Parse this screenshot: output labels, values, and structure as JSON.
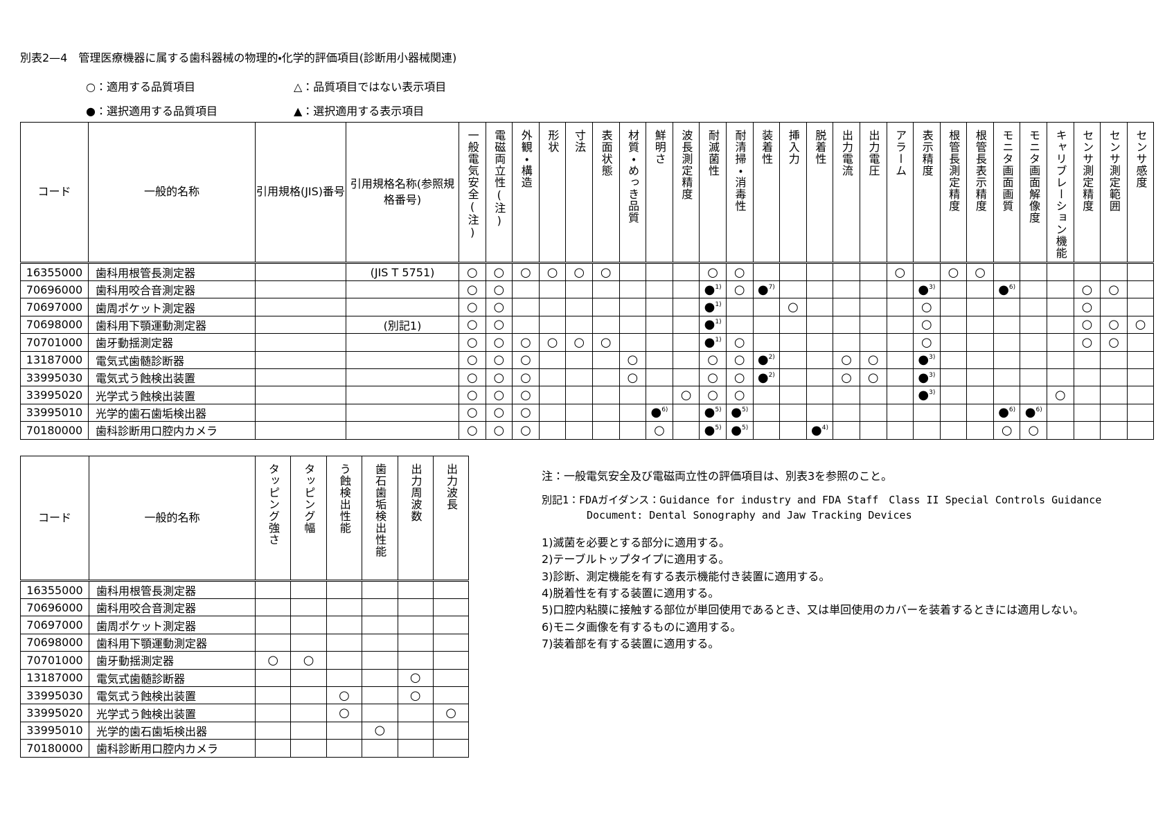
{
  "header": {
    "title": "別表2—4　管理医療機器に属する歯科器械の物理的・化学的評価項目(診断用小器械関連)",
    "legend": [
      "○：適用する品質項目",
      "△：品質項目ではない表示項目",
      "●：選択適用する品質項目",
      "▲：選択適用する表示項目"
    ]
  },
  "table1": {
    "columns": [
      "コード",
      "一般的名称",
      "引用規格(JIS)番号",
      "引用規格名称(参照規格番号)"
    ],
    "items": [
      "一般電気安全(注)",
      "電磁両立性(注)",
      "外観・構造",
      "形状",
      "寸法",
      "表面状態",
      "材質・めっき品質",
      "鮮明さ",
      "波長測定精度",
      "耐滅菌性",
      "耐清掃・消毒性",
      "装着性",
      "挿入力",
      "脱着性",
      "出力電流",
      "出力電圧",
      "アラーム",
      "表示精度",
      "根管長測定精度",
      "根管長表示精度",
      "モニタ画面画質",
      "モニタ画面解像度",
      "キャリブレーション機能",
      "センサ測定精度",
      "センサ測定範囲",
      "センサ感度"
    ],
    "rows": [
      {
        "code": "16355000",
        "name": "歯科用根管長測定器",
        "jis": null,
        "ref": "(JIS T 5751)",
        "cells": [
          "○",
          "○",
          "○",
          "○",
          "○",
          "○",
          null,
          null,
          null,
          "○",
          "○",
          null,
          null,
          null,
          null,
          null,
          "○",
          null,
          "○",
          "○",
          null,
          null,
          null,
          null,
          null,
          null
        ]
      },
      {
        "code": "70696000",
        "name": "歯科用咬合音測定器",
        "jis": null,
        "ref": null,
        "cells": [
          "○",
          "○",
          null,
          null,
          null,
          null,
          null,
          null,
          null,
          {
            "mark": "●",
            "sup": "1)"
          },
          "○",
          {
            "mark": "●",
            "sup": "7)"
          },
          null,
          null,
          null,
          null,
          null,
          {
            "mark": "●",
            "sup": "3)"
          },
          null,
          null,
          {
            "mark": "●",
            "sup": "6)"
          },
          null,
          null,
          "○",
          "○",
          null
        ]
      },
      {
        "code": "70697000",
        "name": "歯周ポケット測定器",
        "jis": null,
        "ref": null,
        "cells": [
          "○",
          "○",
          null,
          null,
          null,
          null,
          null,
          null,
          null,
          {
            "mark": "●",
            "sup": "1)"
          },
          null,
          null,
          "○",
          null,
          null,
          null,
          null,
          "○",
          null,
          null,
          null,
          null,
          null,
          "○",
          null,
          null
        ]
      },
      {
        "code": "70698000",
        "name": "歯科用下顎運動測定器",
        "jis": null,
        "ref": "(別記1)",
        "cells": [
          "○",
          "○",
          null,
          null,
          null,
          null,
          null,
          null,
          null,
          {
            "mark": "●",
            "sup": "1)"
          },
          null,
          null,
          null,
          null,
          null,
          null,
          null,
          "○",
          null,
          null,
          null,
          null,
          null,
          "○",
          "○",
          "○"
        ]
      },
      {
        "code": "70701000",
        "name": "歯牙動揺測定器",
        "jis": null,
        "ref": null,
        "cells": [
          "○",
          "○",
          "○",
          "○",
          "○",
          "○",
          null,
          null,
          null,
          {
            "mark": "●",
            "sup": "1)"
          },
          "○",
          null,
          null,
          null,
          null,
          null,
          null,
          "○",
          null,
          null,
          null,
          null,
          null,
          "○",
          "○",
          null
        ]
      },
      {
        "code": "13187000",
        "name": "電気式歯髄診断器",
        "jis": null,
        "ref": null,
        "cells": [
          "○",
          "○",
          "○",
          null,
          null,
          null,
          "○",
          null,
          null,
          "○",
          "○",
          {
            "mark": "●",
            "sup": "2)"
          },
          null,
          null,
          "○",
          "○",
          null,
          {
            "mark": "●",
            "sup": "3)"
          },
          null,
          null,
          null,
          null,
          null,
          null,
          null,
          null
        ]
      },
      {
        "code": "33995030",
        "name": "電気式う蝕検出装置",
        "jis": null,
        "ref": null,
        "cells": [
          "○",
          "○",
          "○",
          null,
          null,
          null,
          "○",
          null,
          null,
          "○",
          "○",
          {
            "mark": "●",
            "sup": "2)"
          },
          null,
          null,
          "○",
          "○",
          null,
          {
            "mark": "●",
            "sup": "3)"
          },
          null,
          null,
          null,
          null,
          null,
          null,
          null,
          null
        ]
      },
      {
        "code": "33995020",
        "name": "光学式う蝕検出装置",
        "jis": null,
        "ref": null,
        "cells": [
          "○",
          "○",
          "○",
          null,
          null,
          null,
          null,
          null,
          "○",
          "○",
          "○",
          null,
          null,
          null,
          null,
          null,
          null,
          {
            "mark": "●",
            "sup": "3)"
          },
          null,
          null,
          null,
          null,
          "○",
          null,
          null,
          null
        ]
      },
      {
        "code": "33995010",
        "name": "光学的歯石歯垢検出器",
        "jis": null,
        "ref": null,
        "cells": [
          "○",
          "○",
          "○",
          null,
          null,
          null,
          null,
          {
            "mark": "●",
            "sup": "6)"
          },
          null,
          {
            "mark": "●",
            "sup": "5)"
          },
          {
            "mark": "●",
            "sup": "5)"
          },
          null,
          null,
          null,
          null,
          null,
          null,
          null,
          null,
          null,
          {
            "mark": "●",
            "sup": "6)"
          },
          {
            "mark": "●",
            "sup": "6)"
          },
          null,
          null,
          null,
          null
        ]
      },
      {
        "code": "70180000",
        "name": "歯科診断用口腔内カメラ",
        "jis": null,
        "ref": null,
        "cells": [
          "○",
          "○",
          "○",
          null,
          null,
          null,
          null,
          "○",
          null,
          {
            "mark": "●",
            "sup": "5)"
          },
          {
            "mark": "●",
            "sup": "5)"
          },
          null,
          null,
          {
            "mark": "●",
            "sup": "4)"
          },
          null,
          null,
          null,
          null,
          null,
          null,
          "○",
          "○",
          null,
          null,
          null,
          null
        ]
      }
    ]
  },
  "table2": {
    "columns": [
      "コード",
      "一般的名称"
    ],
    "items": [
      "タッピング強さ",
      "タッピング幅",
      "う蝕検出性能",
      "歯石歯垢検出性能",
      "出力周波数",
      "出力波長"
    ],
    "rows": [
      {
        "code": "16355000",
        "name": "歯科用根管長測定器",
        "cells": [
          null,
          null,
          null,
          null,
          null,
          null
        ]
      },
      {
        "code": "70696000",
        "name": "歯科用咬合音測定器",
        "cells": [
          null,
          null,
          null,
          null,
          null,
          null
        ]
      },
      {
        "code": "70697000",
        "name": "歯周ポケット測定器",
        "cells": [
          null,
          null,
          null,
          null,
          null,
          null
        ]
      },
      {
        "code": "70698000",
        "name": "歯科用下顎運動測定器",
        "cells": [
          null,
          null,
          null,
          null,
          null,
          null
        ]
      },
      {
        "code": "70701000",
        "name": "歯牙動揺測定器",
        "cells": [
          "○",
          "○",
          null,
          null,
          null,
          null
        ]
      },
      {
        "code": "13187000",
        "name": "電気式歯髄診断器",
        "cells": [
          null,
          null,
          null,
          null,
          "○",
          null
        ]
      },
      {
        "code": "33995030",
        "name": "電気式う蝕検出装置",
        "cells": [
          null,
          null,
          "○",
          null,
          "○",
          null
        ]
      },
      {
        "code": "33995020",
        "name": "光学式う蝕検出装置",
        "cells": [
          null,
          null,
          "○",
          null,
          null,
          "○"
        ]
      },
      {
        "code": "33995010",
        "name": "光学的歯石歯垢検出器",
        "cells": [
          null,
          null,
          null,
          "○",
          null,
          null
        ]
      },
      {
        "code": "70180000",
        "name": "歯科診断用口腔内カメラ",
        "cells": [
          null,
          null,
          null,
          null,
          null,
          null
        ]
      }
    ]
  },
  "notes": {
    "note": "注：一般電気安全及び電磁両立性の評価項目は、別表3を参照のこと。",
    "bekki": [
      "別記1：FDAガイダンス：Guidance for industry and FDA Staff　Class II Special Controls Guidance",
      "Document: Dental Sonography and Jaw Tracking Devices"
    ],
    "footnotes": [
      "1)滅菌を必要とする部分に適用する。",
      "2)テーブルトップタイプに適用する。",
      "3)診断、測定機能を有する表示機能付き装置に適用する。",
      "4)脱着性を有する装置に適用する。",
      "5)口腔内粘膜に接触する部位が単回使用であるとき、又は単回使用のカバーを装着するときには適用しない。",
      "6)モニタ画像を有するものに適用する。",
      "7)装着部を有する装置に適用する。"
    ]
  }
}
